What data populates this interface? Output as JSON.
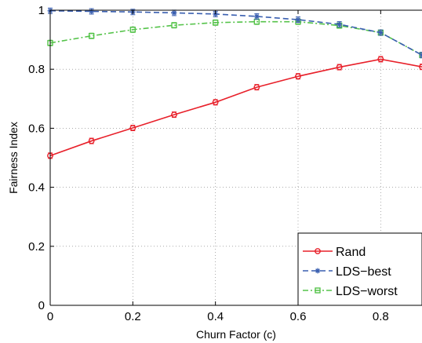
{
  "chart_data": {
    "type": "line",
    "xlabel": "Churn Factor (c)",
    "ylabel": "Fairness Index",
    "xlim": [
      0,
      0.9
    ],
    "ylim": [
      0,
      1
    ],
    "x_ticks": [
      "0",
      "0.2",
      "0.4",
      "0.6",
      "0.8"
    ],
    "x_tick_values": [
      0,
      0.2,
      0.4,
      0.6,
      0.8
    ],
    "y_ticks": [
      "0",
      "0.2",
      "0.4",
      "0.6",
      "0.8",
      "1"
    ],
    "y_tick_values": [
      0,
      0.2,
      0.4,
      0.6,
      0.8,
      1
    ],
    "grid": true,
    "legend_position": "bottom-right",
    "x": [
      0,
      0.1,
      0.2,
      0.3,
      0.4,
      0.5,
      0.6,
      0.7,
      0.8,
      0.9
    ],
    "series": [
      {
        "name": "Rand",
        "color": "#e8202a",
        "dash": "solid",
        "marker": "circle",
        "values": [
          0.507,
          0.557,
          0.601,
          0.646,
          0.688,
          0.739,
          0.776,
          0.807,
          0.834,
          0.808
        ]
      },
      {
        "name": "LDS−best",
        "color": "#3a5fb0",
        "dash": "dashed",
        "marker": "star",
        "values": [
          0.998,
          0.996,
          0.994,
          0.991,
          0.987,
          0.979,
          0.968,
          0.952,
          0.924,
          0.848
        ]
      },
      {
        "name": "LDS−worst",
        "color": "#55c34a",
        "dash": "dashdot",
        "marker": "square",
        "values": [
          0.889,
          0.913,
          0.934,
          0.949,
          0.958,
          0.961,
          0.961,
          0.948,
          0.924,
          0.848
        ]
      }
    ]
  }
}
